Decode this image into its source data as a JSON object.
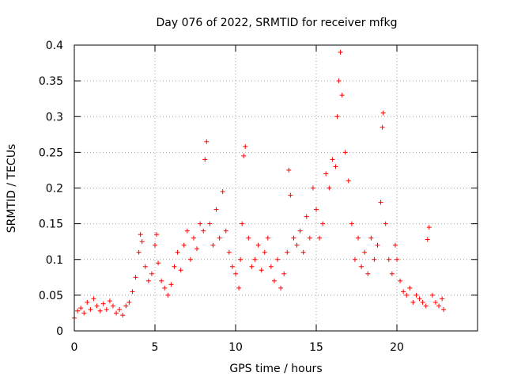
{
  "chart_data": {
    "type": "scatter",
    "title": "Day 076 of 2022, SRMTID for receiver mfkg",
    "xlabel": "GPS time / hours",
    "ylabel": "SRMTID / TECUs",
    "xlim": [
      0,
      25
    ],
    "ylim": [
      0,
      0.4
    ],
    "x_ticks": [
      0,
      5,
      10,
      15,
      20
    ],
    "x_tick_labels": [
      "0",
      "5",
      "10",
      "15",
      "20"
    ],
    "y_ticks": [
      0,
      0.05,
      0.1,
      0.15,
      0.2,
      0.25,
      0.3,
      0.35,
      0.4
    ],
    "y_tick_labels": [
      "0",
      "0.05",
      "0.1",
      "0.15",
      "0.2",
      "0.25",
      "0.3",
      "0.35",
      "0.4"
    ],
    "grid": true,
    "marker": "+",
    "color": "#ff0000",
    "series": [
      {
        "name": "SRMTID",
        "points": [
          [
            0.0,
            0.018
          ],
          [
            0.2,
            0.028
          ],
          [
            0.4,
            0.032
          ],
          [
            0.6,
            0.025
          ],
          [
            0.8,
            0.04
          ],
          [
            1.0,
            0.03
          ],
          [
            1.2,
            0.045
          ],
          [
            1.4,
            0.035
          ],
          [
            1.6,
            0.028
          ],
          [
            1.8,
            0.038
          ],
          [
            2.0,
            0.03
          ],
          [
            2.2,
            0.042
          ],
          [
            2.4,
            0.035
          ],
          [
            2.6,
            0.025
          ],
          [
            2.8,
            0.03
          ],
          [
            3.0,
            0.022
          ],
          [
            3.2,
            0.035
          ],
          [
            3.4,
            0.04
          ],
          [
            3.6,
            0.055
          ],
          [
            3.8,
            0.075
          ],
          [
            4.0,
            0.11
          ],
          [
            4.1,
            0.135
          ],
          [
            4.2,
            0.125
          ],
          [
            4.4,
            0.09
          ],
          [
            4.6,
            0.07
          ],
          [
            4.8,
            0.08
          ],
          [
            5.0,
            0.12
          ],
          [
            5.1,
            0.135
          ],
          [
            5.2,
            0.095
          ],
          [
            5.4,
            0.07
          ],
          [
            5.6,
            0.06
          ],
          [
            5.8,
            0.05
          ],
          [
            6.0,
            0.065
          ],
          [
            6.2,
            0.09
          ],
          [
            6.4,
            0.11
          ],
          [
            6.6,
            0.085
          ],
          [
            6.8,
            0.12
          ],
          [
            7.0,
            0.14
          ],
          [
            7.2,
            0.1
          ],
          [
            7.4,
            0.13
          ],
          [
            7.6,
            0.115
          ],
          [
            7.8,
            0.15
          ],
          [
            8.0,
            0.14
          ],
          [
            8.1,
            0.24
          ],
          [
            8.2,
            0.265
          ],
          [
            8.4,
            0.15
          ],
          [
            8.6,
            0.12
          ],
          [
            8.8,
            0.17
          ],
          [
            9.0,
            0.13
          ],
          [
            9.2,
            0.195
          ],
          [
            9.4,
            0.14
          ],
          [
            9.6,
            0.11
          ],
          [
            9.8,
            0.09
          ],
          [
            10.0,
            0.08
          ],
          [
            10.2,
            0.06
          ],
          [
            10.3,
            0.1
          ],
          [
            10.4,
            0.15
          ],
          [
            10.5,
            0.245
          ],
          [
            10.6,
            0.258
          ],
          [
            10.8,
            0.13
          ],
          [
            11.0,
            0.09
          ],
          [
            11.2,
            0.1
          ],
          [
            11.4,
            0.12
          ],
          [
            11.6,
            0.085
          ],
          [
            11.8,
            0.11
          ],
          [
            12.0,
            0.13
          ],
          [
            12.2,
            0.09
          ],
          [
            12.4,
            0.07
          ],
          [
            12.6,
            0.1
          ],
          [
            12.8,
            0.06
          ],
          [
            13.0,
            0.08
          ],
          [
            13.2,
            0.11
          ],
          [
            13.3,
            0.225
          ],
          [
            13.4,
            0.19
          ],
          [
            13.6,
            0.13
          ],
          [
            13.8,
            0.12
          ],
          [
            14.0,
            0.14
          ],
          [
            14.2,
            0.11
          ],
          [
            14.4,
            0.16
          ],
          [
            14.6,
            0.13
          ],
          [
            14.8,
            0.2
          ],
          [
            15.0,
            0.17
          ],
          [
            15.2,
            0.13
          ],
          [
            15.4,
            0.15
          ],
          [
            15.6,
            0.22
          ],
          [
            15.8,
            0.2
          ],
          [
            16.0,
            0.24
          ],
          [
            16.2,
            0.23
          ],
          [
            16.3,
            0.3
          ],
          [
            16.4,
            0.35
          ],
          [
            16.5,
            0.39
          ],
          [
            16.6,
            0.33
          ],
          [
            16.8,
            0.25
          ],
          [
            17.0,
            0.21
          ],
          [
            17.2,
            0.15
          ],
          [
            17.4,
            0.1
          ],
          [
            17.6,
            0.13
          ],
          [
            17.8,
            0.09
          ],
          [
            18.0,
            0.11
          ],
          [
            18.2,
            0.08
          ],
          [
            18.4,
            0.13
          ],
          [
            18.6,
            0.1
          ],
          [
            18.8,
            0.12
          ],
          [
            19.0,
            0.18
          ],
          [
            19.1,
            0.285
          ],
          [
            19.15,
            0.305
          ],
          [
            19.3,
            0.15
          ],
          [
            19.5,
            0.1
          ],
          [
            19.7,
            0.08
          ],
          [
            19.9,
            0.12
          ],
          [
            20.0,
            0.1
          ],
          [
            20.2,
            0.07
          ],
          [
            20.4,
            0.055
          ],
          [
            20.6,
            0.05
          ],
          [
            20.8,
            0.06
          ],
          [
            21.0,
            0.04
          ],
          [
            21.2,
            0.05
          ],
          [
            21.4,
            0.045
          ],
          [
            21.6,
            0.04
          ],
          [
            21.8,
            0.035
          ],
          [
            21.9,
            0.128
          ],
          [
            22.0,
            0.145
          ],
          [
            22.2,
            0.05
          ],
          [
            22.4,
            0.04
          ],
          [
            22.6,
            0.035
          ],
          [
            22.8,
            0.045
          ],
          [
            22.9,
            0.03
          ]
        ]
      }
    ]
  }
}
